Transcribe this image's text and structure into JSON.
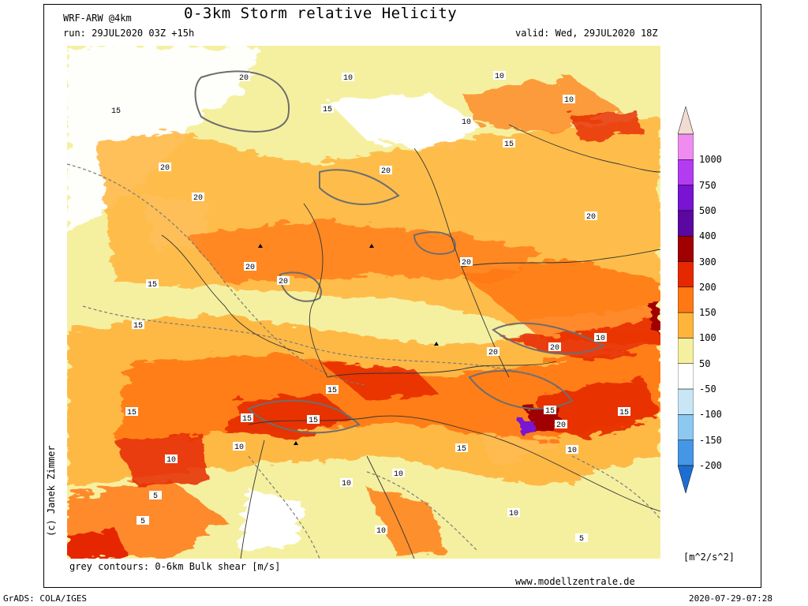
{
  "header": {
    "model": "WRF-ARW @4km",
    "title": "0-3km Storm relative Helicity",
    "run": "run: 29JUL2020 03Z +15h",
    "valid": "valid: Wed, 29JUL2020 18Z"
  },
  "footer": {
    "contour_note": "grey contours: 0-6km Bulk shear [m/s]",
    "website": "www.modellzentrale.de",
    "grads": "GrADS: COLA/IGES",
    "timestamp": "2020-07-29-07:28",
    "credit": "(c) Janek Zimmer"
  },
  "colorbar": {
    "units": "[m^2/s^2]",
    "labels": [
      "1000",
      "750",
      "500",
      "400",
      "300",
      "200",
      "150",
      "100",
      "50",
      "-50",
      "-100",
      "-150",
      "-200"
    ],
    "colors": [
      "#f0dcd2",
      "#f08cf0",
      "#b43cf0",
      "#7814d2",
      "#5a08a0",
      "#a00000",
      "#e62800",
      "#ff7814",
      "#ffb43c",
      "#f5f0a0",
      "#ffffff",
      "#c8e6f5",
      "#8cc8f0",
      "#4696e6",
      "#1e6ed2"
    ]
  },
  "map": {
    "contour_labels": [
      "20",
      "15",
      "5",
      "10"
    ]
  }
}
